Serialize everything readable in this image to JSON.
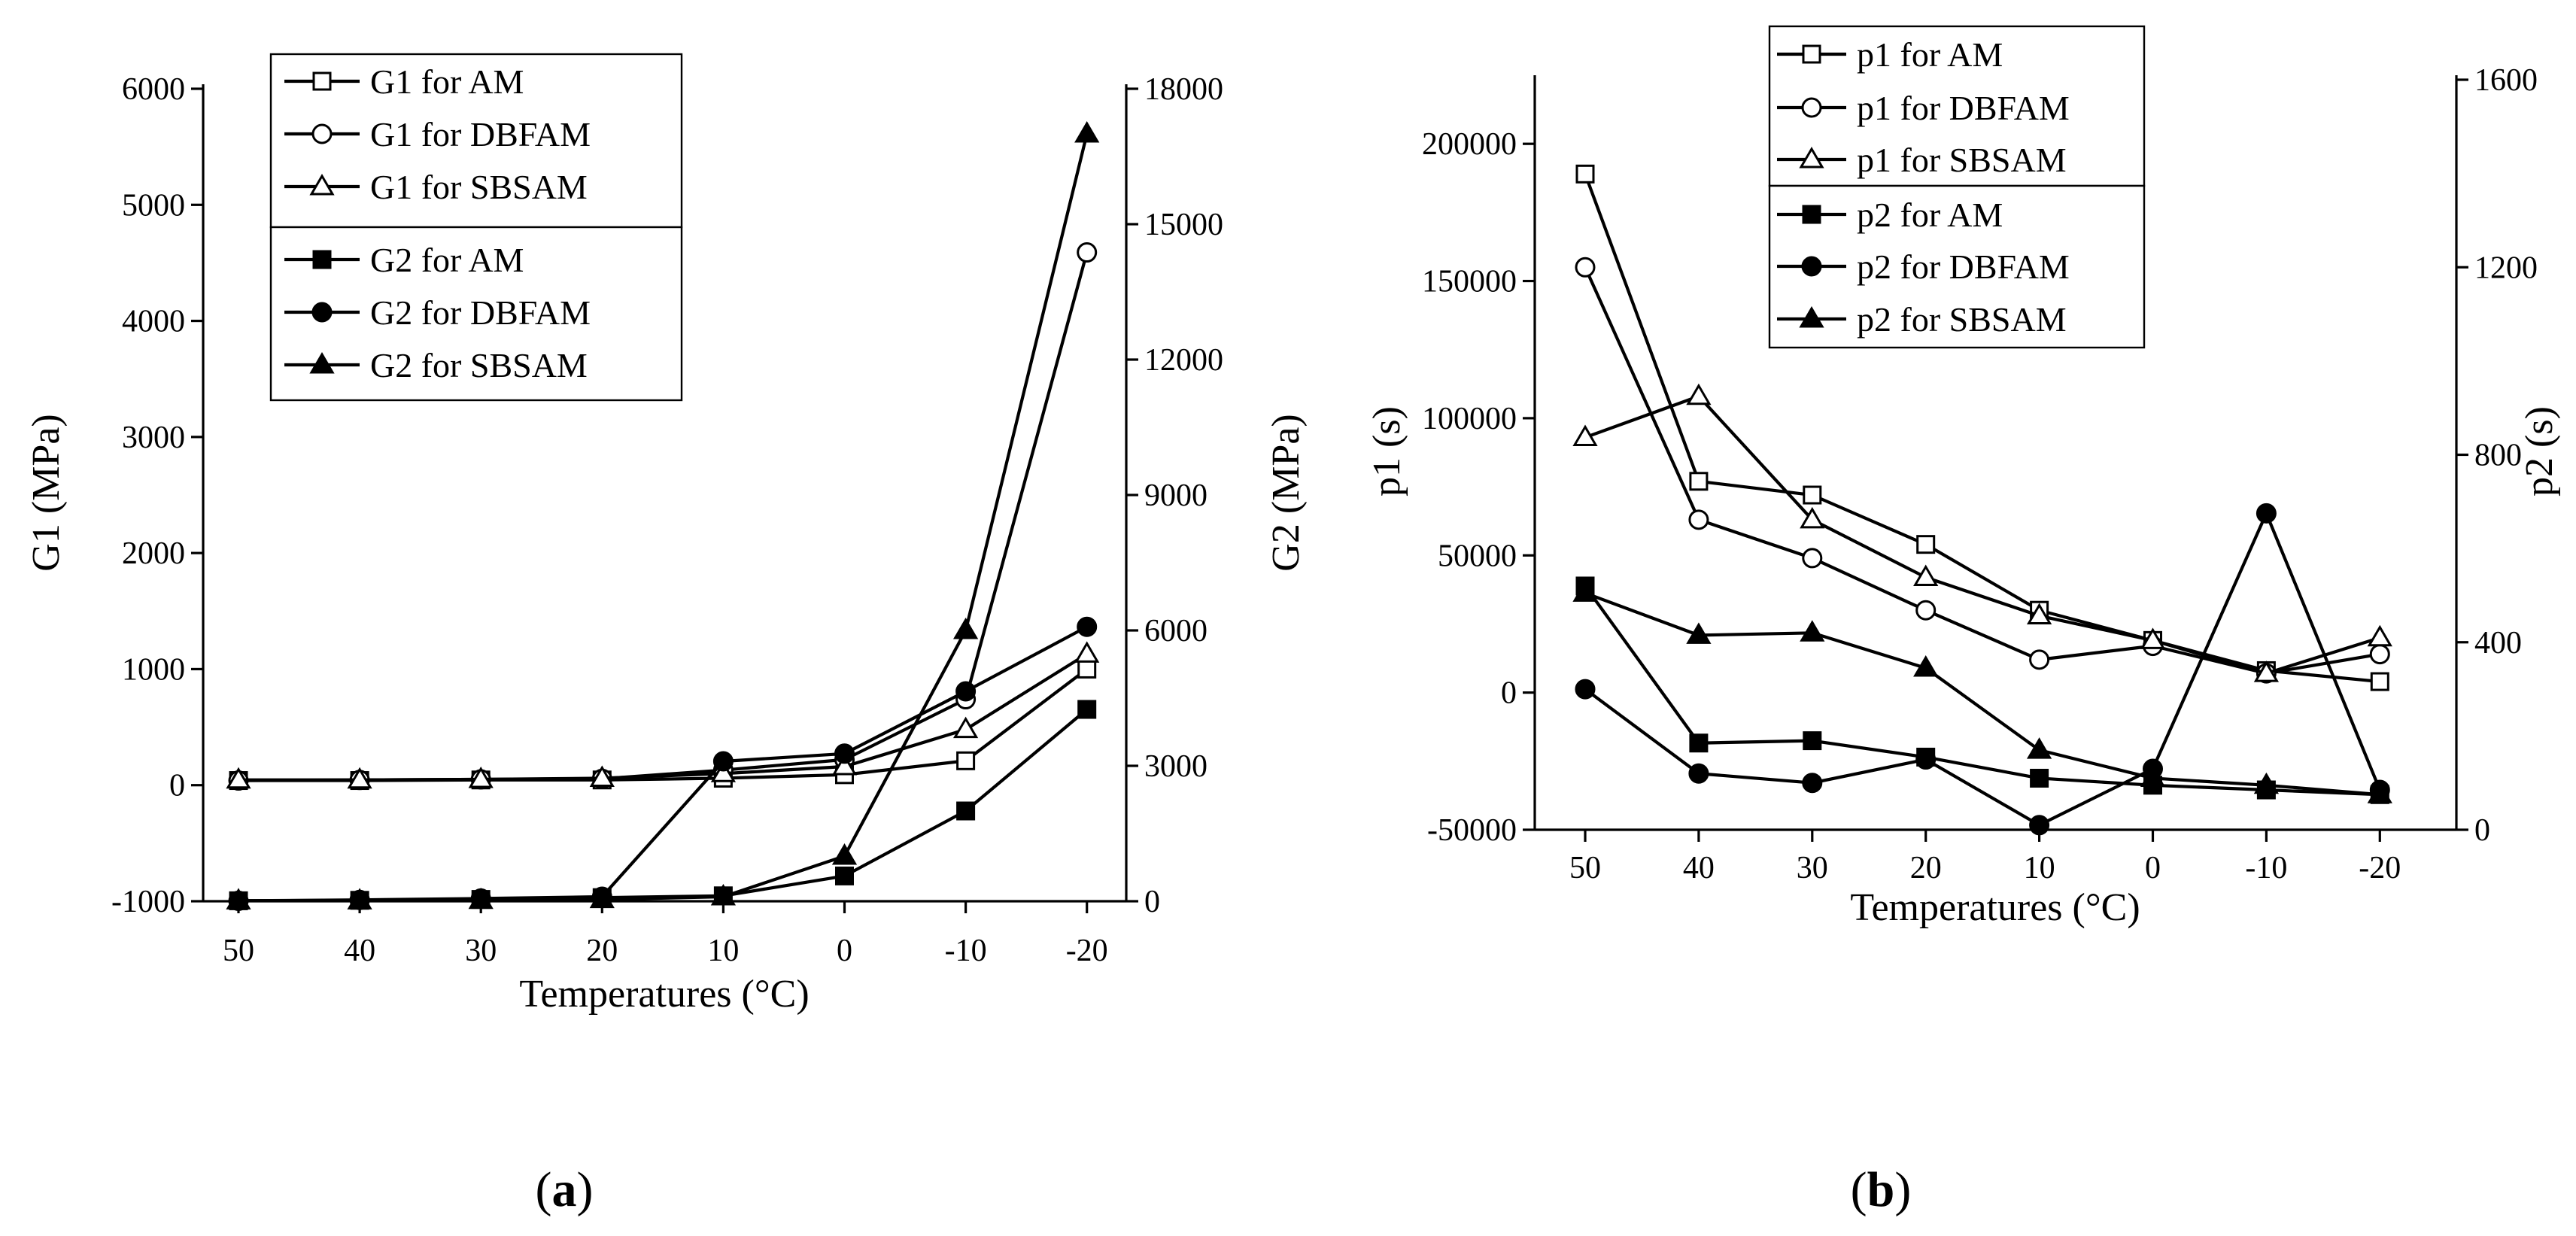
{
  "chart_data": [
    {
      "type": "line",
      "panel": "a",
      "x": [
        "50",
        "40",
        "30",
        "20",
        "10",
        "0",
        "-10",
        "-20"
      ],
      "xlabel": "Temperatures (°C)",
      "ylabel": "G1 (MPa)",
      "ylabel_right": "G2 (MPa)",
      "ylim": [
        -1000,
        6000
      ],
      "ylim_right": [
        0,
        18000
      ],
      "y_ticks": [
        "-1000",
        "0",
        "1000",
        "2000",
        "3000",
        "4000",
        "5000",
        "6000"
      ],
      "y_ticks_right": [
        "0",
        "3000",
        "6000",
        "9000",
        "12000",
        "15000",
        "18000"
      ],
      "legend_position": "top-left",
      "series": [
        {
          "name": "G1 for AM",
          "axis": "left",
          "marker": "square-open",
          "values": [
            40,
            40,
            45,
            45,
            60,
            90,
            210,
            1000
          ]
        },
        {
          "name": "G1 for DBFAM",
          "axis": "left",
          "marker": "circle-open",
          "values": [
            40,
            45,
            50,
            55,
            130,
            220,
            740,
            4590
          ]
        },
        {
          "name": "G1 for SBSAM",
          "axis": "left",
          "marker": "triangle-open",
          "values": [
            45,
            45,
            50,
            60,
            100,
            160,
            480,
            1130
          ]
        },
        {
          "name": "G2 for AM",
          "axis": "right",
          "marker": "square-filled",
          "values": [
            10,
            20,
            40,
            80,
            120,
            560,
            2000,
            4250
          ]
        },
        {
          "name": "G2 for DBFAM",
          "axis": "right",
          "marker": "circle-filled",
          "values": [
            10,
            30,
            60,
            100,
            3100,
            3270,
            4650,
            6080
          ]
        },
        {
          "name": "G2 for SBSAM",
          "axis": "right",
          "marker": "triangle-filled",
          "values": [
            10,
            10,
            20,
            40,
            100,
            1000,
            6000,
            17000
          ]
        }
      ]
    },
    {
      "type": "line",
      "panel": "b",
      "x": [
        "50",
        "40",
        "30",
        "20",
        "10",
        "0",
        "-10",
        "-20"
      ],
      "xlabel": "Temperatures (°C)",
      "ylabel": "p1 (s)",
      "ylabel_right": "p2 (s)",
      "ylim": [
        -50000,
        225000
      ],
      "ylim_right": [
        0,
        1600
      ],
      "y_ticks": [
        "-50000",
        "0",
        "50000",
        "100000",
        "150000",
        "200000"
      ],
      "y_ticks_right": [
        "0",
        "400",
        "800",
        "1200",
        "1600"
      ],
      "legend_position": "top-left",
      "series": [
        {
          "name": "p1 for AM",
          "axis": "left",
          "marker": "square-open",
          "values": [
            189000,
            77000,
            72000,
            54000,
            30000,
            19000,
            8000,
            4000
          ]
        },
        {
          "name": "p1 for DBFAM",
          "axis": "left",
          "marker": "circle-open",
          "values": [
            155000,
            63000,
            49000,
            30000,
            12000,
            17000,
            7000,
            14000
          ]
        },
        {
          "name": "p1 for SBSAM",
          "axis": "left",
          "marker": "triangle-open",
          "values": [
            93000,
            108000,
            63000,
            42000,
            28000,
            19000,
            7000,
            20000
          ]
        },
        {
          "name": "p2 for AM",
          "axis": "right",
          "marker": "square-filled",
          "values": [
            520,
            185,
            190,
            155,
            110,
            95,
            85,
            75
          ]
        },
        {
          "name": "p2 for DBFAM",
          "axis": "right",
          "marker": "circle-filled",
          "values": [
            300,
            120,
            100,
            150,
            10,
            130,
            675,
            85
          ]
        },
        {
          "name": "p2 for SBSAM",
          "axis": "right",
          "marker": "triangle-filled",
          "values": [
            505,
            415,
            420,
            345,
            170,
            110,
            95,
            75
          ]
        }
      ]
    }
  ],
  "panels": {
    "a": {
      "label_open": "(",
      "label_letter": "a",
      "label_close": ")"
    },
    "b": {
      "label_open": "(",
      "label_letter": "b",
      "label_close": ")"
    }
  }
}
